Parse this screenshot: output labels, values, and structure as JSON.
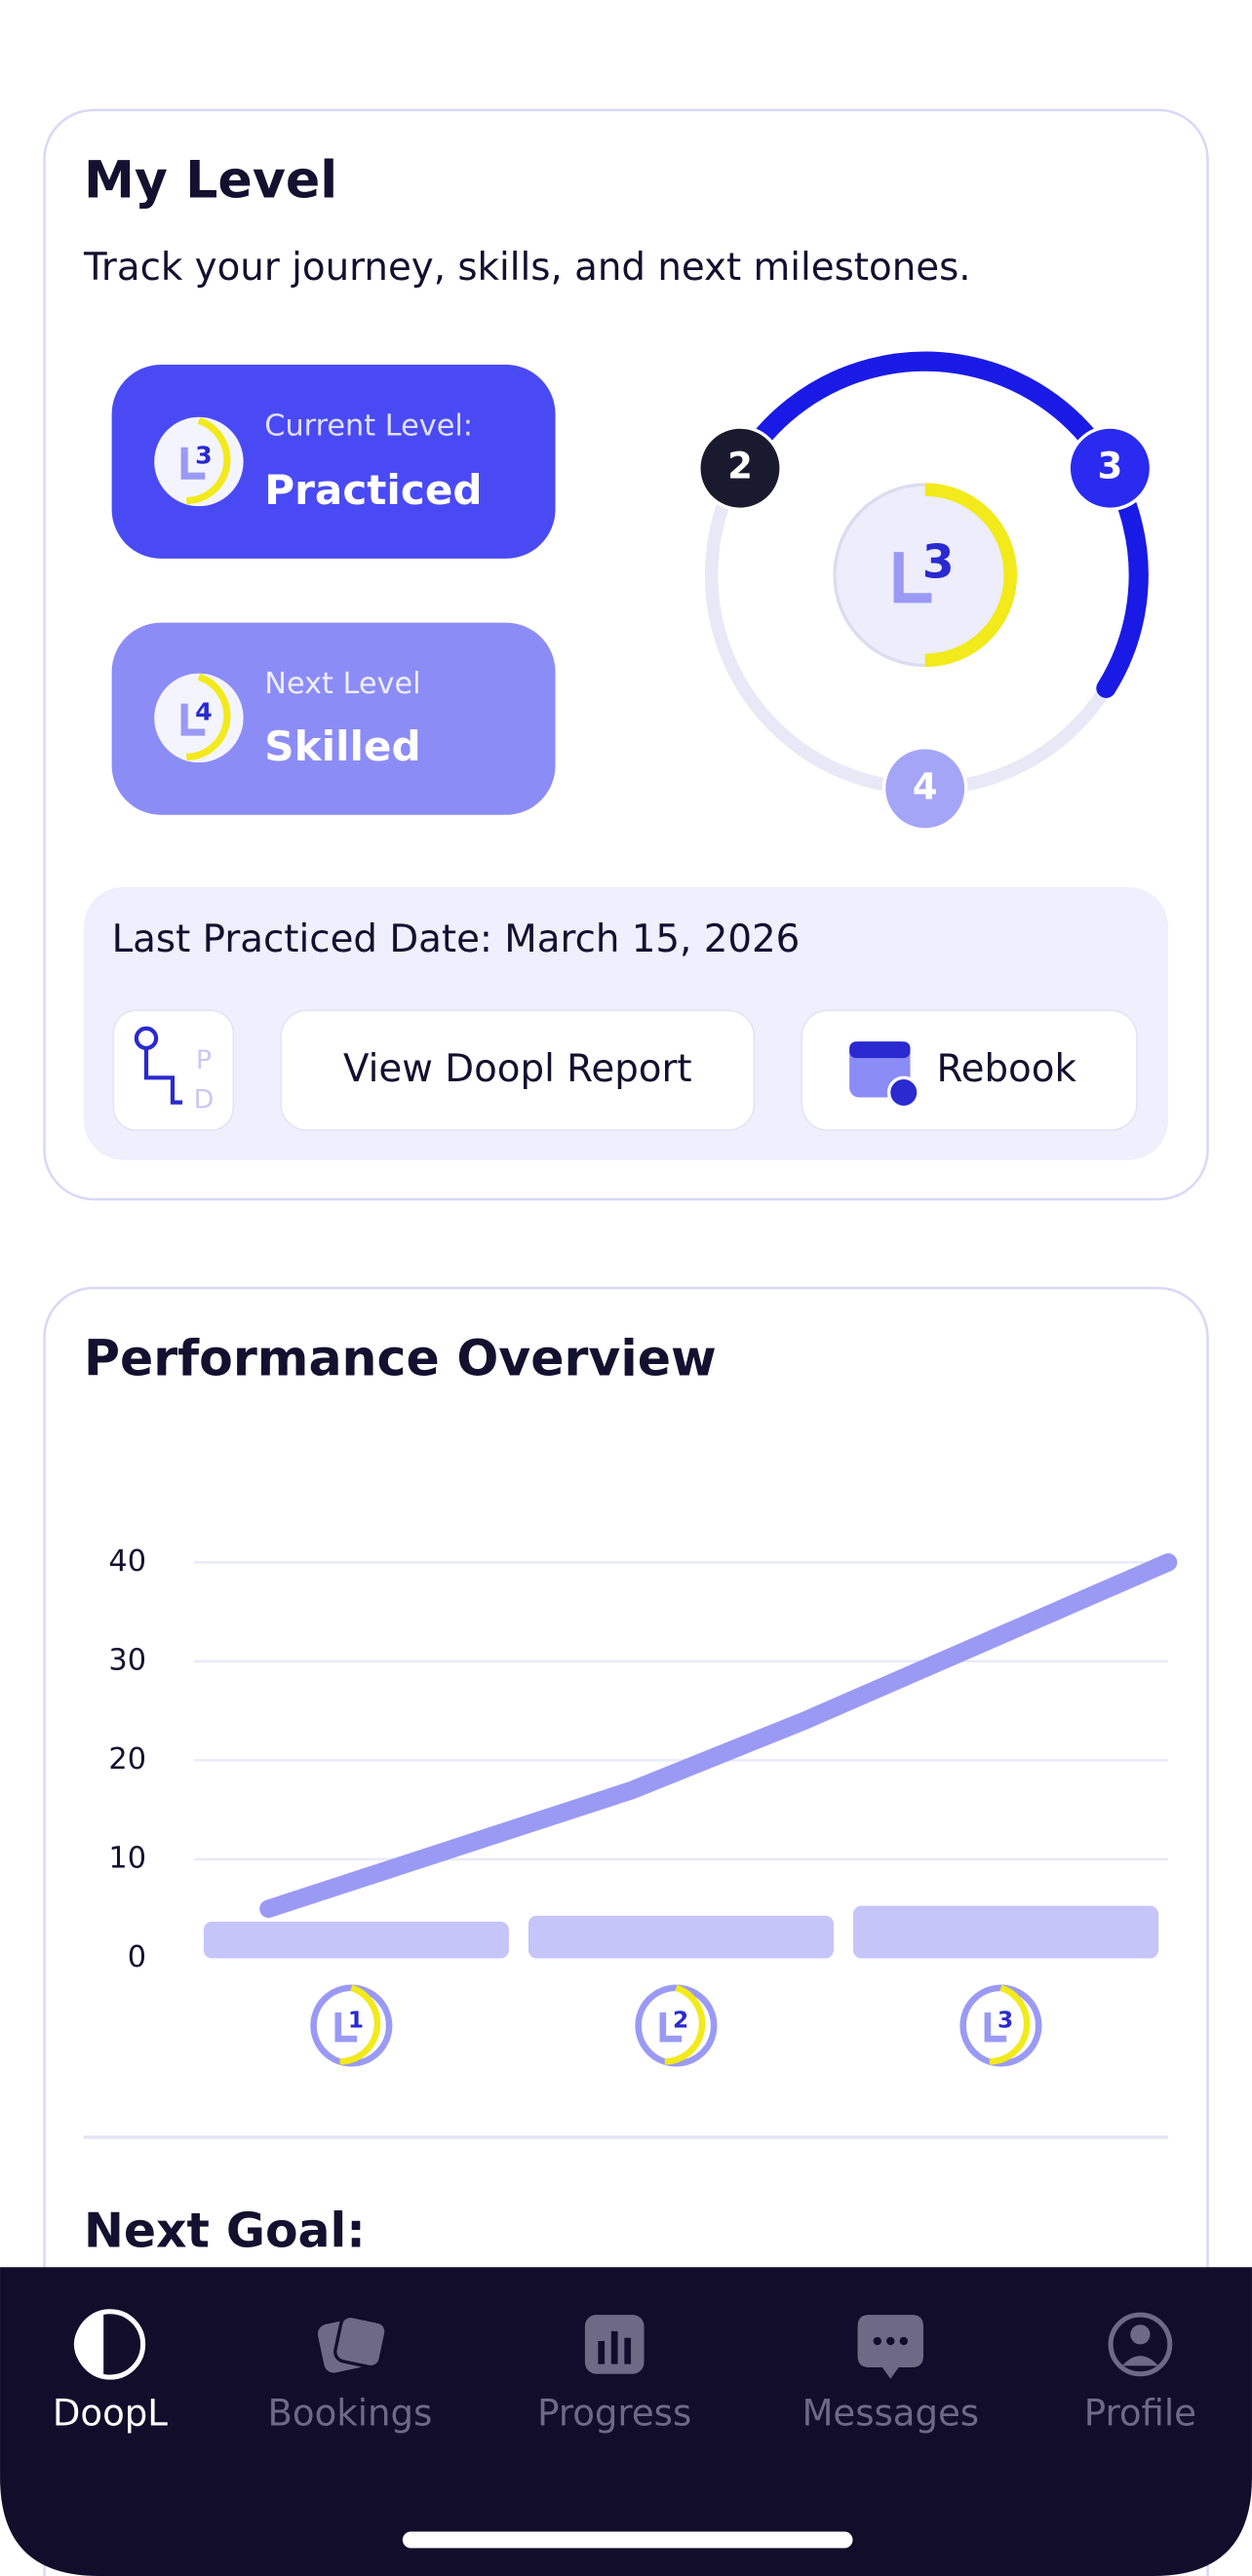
{
  "my_level": {
    "title": "My Level",
    "subtitle": "Track your journey, skills, and next milestones.",
    "current_level": {
      "label": "Current Level:",
      "name": "Practiced",
      "number": "3"
    },
    "next_level": {
      "label": "Next Level",
      "name": "Skilled",
      "number": "4"
    },
    "progress_ring": {
      "center": "3",
      "nodes": [
        "2",
        "3",
        "4"
      ]
    },
    "last_practiced": "Last Practiced Date: March 15, 2026",
    "actions": {
      "pd": [
        "P",
        "D"
      ],
      "report": "View Doopl Report",
      "rebook": "Rebook"
    }
  },
  "chart_data": {
    "type": "bar",
    "title": "Performance Overview",
    "categories": [
      "1",
      "2",
      "3"
    ],
    "values": [
      3.7,
      4.3,
      5.3
    ],
    "color": "#c5c5f9",
    "ylim": [
      0,
      40
    ],
    "yticks": [
      0,
      10,
      20,
      30,
      40
    ],
    "grid": true,
    "xlim": [
      0,
      3
    ],
    "line": {
      "x": [
        0.23,
        1.35,
        1.88,
        2.44,
        3.0
      ],
      "values": [
        5,
        17,
        24,
        32,
        40
      ],
      "color": "#9a9af5"
    }
  },
  "next_goal": "Next Goal:",
  "tabs": [
    "DoopL",
    "Bookings",
    "Progress",
    "Messages",
    "Profile"
  ]
}
